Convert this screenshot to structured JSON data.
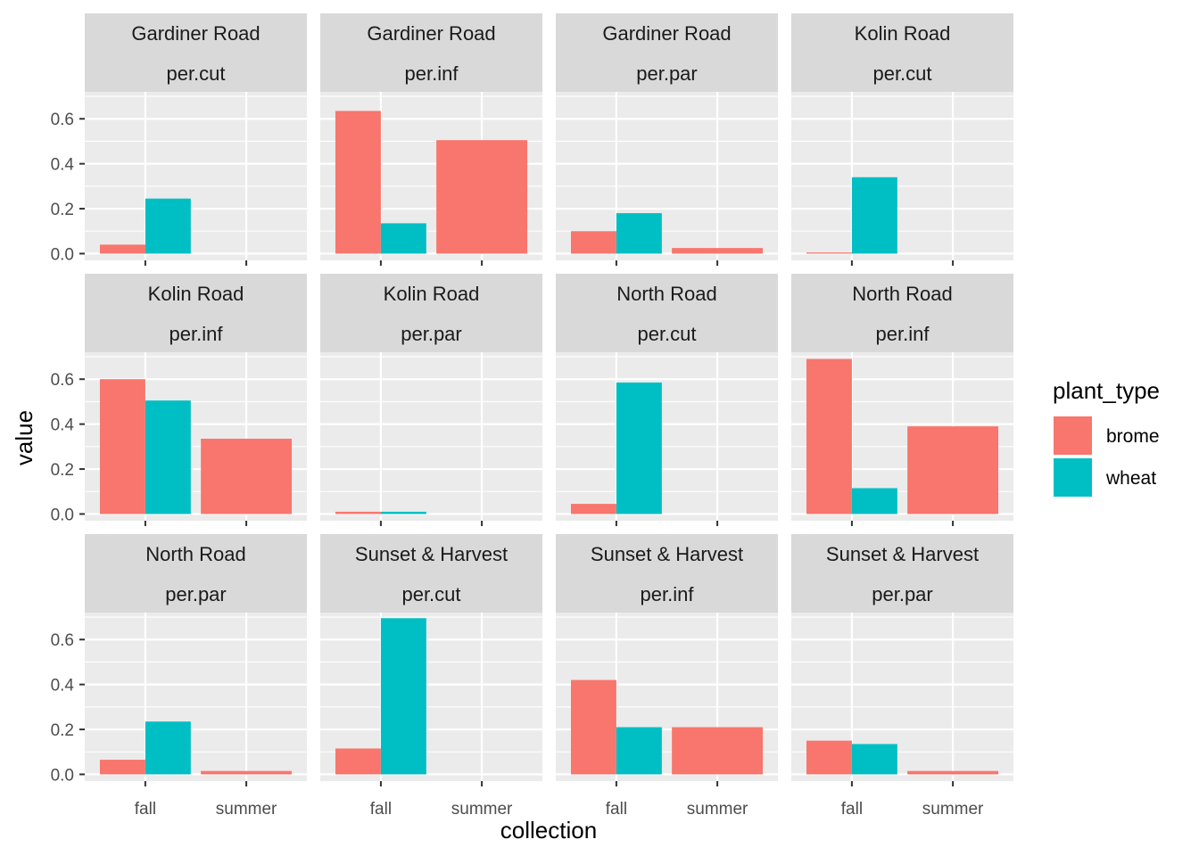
{
  "chart_data": {
    "type": "bar",
    "layout": "faceted grid, 3 rows x 4 columns, dodged bars",
    "xlabel": "collection",
    "ylabel": "value",
    "categories": [
      "fall",
      "summer"
    ],
    "ylim": [
      0,
      0.72
    ],
    "yticks": [
      0.0,
      0.2,
      0.4,
      0.6
    ],
    "ytick_labels": [
      "0.0",
      "0.2",
      "0.4",
      "0.6"
    ],
    "grid": true,
    "legend": {
      "title": "plant_type",
      "position": "right",
      "entries": [
        {
          "name": "brome",
          "color": "#F8766D"
        },
        {
          "name": "wheat",
          "color": "#00BFC4"
        }
      ]
    },
    "colors": {
      "panel_bg": "#EBEBEB",
      "grid": "#FFFFFF",
      "strip_bg": "#D9D9D9"
    },
    "facets": [
      {
        "site": "Gardiner Road",
        "measure": "per.cut",
        "bars": [
          {
            "x": "fall",
            "type": "brome",
            "value": 0.04
          },
          {
            "x": "fall",
            "type": "wheat",
            "value": 0.245
          }
        ]
      },
      {
        "site": "Gardiner Road",
        "measure": "per.inf",
        "bars": [
          {
            "x": "fall",
            "type": "brome",
            "value": 0.635
          },
          {
            "x": "fall",
            "type": "wheat",
            "value": 0.135
          },
          {
            "x": "summer",
            "type": "brome",
            "value": 0.505
          }
        ]
      },
      {
        "site": "Gardiner Road",
        "measure": "per.par",
        "bars": [
          {
            "x": "fall",
            "type": "brome",
            "value": 0.1
          },
          {
            "x": "fall",
            "type": "wheat",
            "value": 0.18
          },
          {
            "x": "summer",
            "type": "brome",
            "value": 0.025
          }
        ]
      },
      {
        "site": "Kolin Road",
        "measure": "per.cut",
        "bars": [
          {
            "x": "fall",
            "type": "brome",
            "value": 0.005
          },
          {
            "x": "fall",
            "type": "wheat",
            "value": 0.34
          }
        ]
      },
      {
        "site": "Kolin Road",
        "measure": "per.inf",
        "bars": [
          {
            "x": "fall",
            "type": "brome",
            "value": 0.6
          },
          {
            "x": "fall",
            "type": "wheat",
            "value": 0.505
          },
          {
            "x": "summer",
            "type": "brome",
            "value": 0.335
          }
        ]
      },
      {
        "site": "Kolin Road",
        "measure": "per.par",
        "bars": [
          {
            "x": "fall",
            "type": "brome",
            "value": 0.01
          },
          {
            "x": "fall",
            "type": "wheat",
            "value": 0.01
          }
        ]
      },
      {
        "site": "North Road",
        "measure": "per.cut",
        "bars": [
          {
            "x": "fall",
            "type": "brome",
            "value": 0.045
          },
          {
            "x": "fall",
            "type": "wheat",
            "value": 0.585
          }
        ]
      },
      {
        "site": "North Road",
        "measure": "per.inf",
        "bars": [
          {
            "x": "fall",
            "type": "brome",
            "value": 0.69
          },
          {
            "x": "fall",
            "type": "wheat",
            "value": 0.115
          },
          {
            "x": "summer",
            "type": "brome",
            "value": 0.39
          }
        ]
      },
      {
        "site": "North Road",
        "measure": "per.par",
        "bars": [
          {
            "x": "fall",
            "type": "brome",
            "value": 0.065
          },
          {
            "x": "fall",
            "type": "wheat",
            "value": 0.235
          },
          {
            "x": "summer",
            "type": "brome",
            "value": 0.015
          }
        ]
      },
      {
        "site": "Sunset & Harvest",
        "measure": "per.cut",
        "bars": [
          {
            "x": "fall",
            "type": "brome",
            "value": 0.115
          },
          {
            "x": "fall",
            "type": "wheat",
            "value": 0.695
          }
        ]
      },
      {
        "site": "Sunset & Harvest",
        "measure": "per.inf",
        "bars": [
          {
            "x": "fall",
            "type": "brome",
            "value": 0.42
          },
          {
            "x": "fall",
            "type": "wheat",
            "value": 0.21
          },
          {
            "x": "summer",
            "type": "brome",
            "value": 0.21
          }
        ]
      },
      {
        "site": "Sunset & Harvest",
        "measure": "per.par",
        "bars": [
          {
            "x": "fall",
            "type": "brome",
            "value": 0.15
          },
          {
            "x": "fall",
            "type": "wheat",
            "value": 0.135
          },
          {
            "x": "summer",
            "type": "brome",
            "value": 0.015
          }
        ]
      }
    ]
  }
}
